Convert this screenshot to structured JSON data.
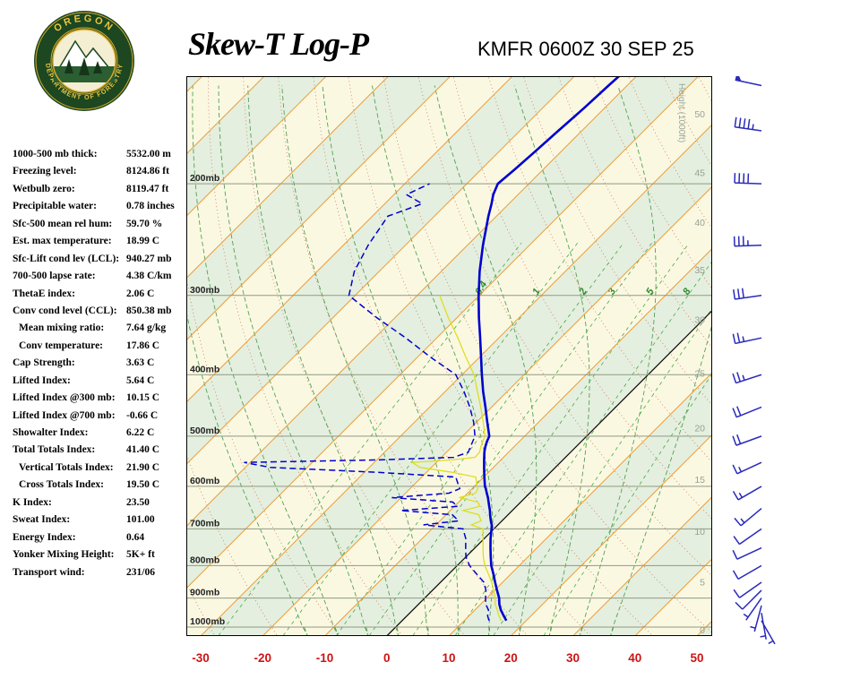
{
  "header": {
    "title": "Skew-T Log-P",
    "station_time": "KMFR 0600Z 30 SEP 25",
    "logo": {
      "org_top": "OREGON",
      "org_bottom": "DEPARTMENT OF FORESTRY"
    }
  },
  "stats": {
    "rows": [
      {
        "label": "1000-500 mb thick:",
        "value": "5532.00 m",
        "indent": false
      },
      {
        "label": "Freezing level:",
        "value": "8124.86 ft",
        "indent": false
      },
      {
        "label": "Wetbulb zero:",
        "value": "8119.47 ft",
        "indent": false
      },
      {
        "label": "Precipitable water:",
        "value": "0.78 inches",
        "indent": false
      },
      {
        "label": "Sfc-500 mean rel hum:",
        "value": "59.70 %",
        "indent": false
      },
      {
        "label": "Est. max temperature:",
        "value": "18.99 C",
        "indent": false
      },
      {
        "label": "Sfc-Lift cond lev (LCL):",
        "value": "940.27 mb",
        "indent": false
      },
      {
        "label": "700-500 lapse rate:",
        "value": "4.38 C/km",
        "indent": false
      },
      {
        "label": "ThetaE index:",
        "value": "2.06 C",
        "indent": false
      },
      {
        "label": "Conv cond level (CCL):",
        "value": "850.38 mb",
        "indent": false
      },
      {
        "label": "Mean mixing ratio:",
        "value": "7.64 g/kg",
        "indent": true
      },
      {
        "label": "Conv temperature:",
        "value": "17.86 C",
        "indent": true
      },
      {
        "label": "Cap Strength:",
        "value": "3.63 C",
        "indent": false
      },
      {
        "label": "Lifted Index:",
        "value": "5.64 C",
        "indent": false
      },
      {
        "label": "Lifted Index @300 mb:",
        "value": "10.15 C",
        "indent": false
      },
      {
        "label": "Lifted Index @700 mb:",
        "value": "-0.66 C",
        "indent": false
      },
      {
        "label": "Showalter Index:",
        "value": "6.22 C",
        "indent": false
      },
      {
        "label": "Total Totals Index:",
        "value": "41.40 C",
        "indent": false
      },
      {
        "label": "Vertical Totals Index:",
        "value": "21.90 C",
        "indent": true
      },
      {
        "label": "Cross Totals Index:",
        "value": "19.50 C",
        "indent": true
      },
      {
        "label": "K Index:",
        "value": "23.50",
        "indent": false
      },
      {
        "label": "Sweat Index:",
        "value": "101.00",
        "indent": false
      },
      {
        "label": "Energy Index:",
        "value": "0.64",
        "indent": false
      },
      {
        "label": "Yonker Mixing Height:",
        "value": "5K+ ft",
        "indent": false
      },
      {
        "label": "Transport wind:",
        "value": "231/06",
        "indent": false
      }
    ]
  },
  "chart_data": {
    "type": "skew-t-log-p",
    "pressure_axis": {
      "scale": "log",
      "top_mb": 135,
      "bottom_mb": 1033,
      "isobars": [
        200,
        300,
        400,
        500,
        600,
        700,
        800,
        900,
        1000
      ],
      "labels": [
        "200mb",
        "300mb",
        "400mb",
        "500mb",
        "600mb",
        "700mb",
        "800mb",
        "900mb",
        "1000mb"
      ]
    },
    "temp_axis": {
      "unit": "C",
      "skew_deg": 45,
      "isotherm_step": 10,
      "tick_values": [
        -30,
        -20,
        -10,
        0,
        10,
        20,
        30,
        40,
        50
      ],
      "tick_labels": [
        "-30",
        "-20",
        "-10",
        "0",
        "10",
        "20",
        "30",
        "40",
        "50"
      ]
    },
    "height_axis": {
      "title": "Height (1000ft)",
      "ticks": [
        {
          "label": "50",
          "p": 155
        },
        {
          "label": "45",
          "p": 192
        },
        {
          "label": "40",
          "p": 230
        },
        {
          "label": "35",
          "p": 273
        },
        {
          "label": "30",
          "p": 327
        },
        {
          "label": "25",
          "p": 398
        },
        {
          "label": "20",
          "p": 485
        },
        {
          "label": "15",
          "p": 585
        },
        {
          "label": "10",
          "p": 706
        },
        {
          "label": "5",
          "p": 848
        },
        {
          "label": "0",
          "p": 1010
        }
      ]
    },
    "mixing_ratio_lines": {
      "values_g_kg": [
        0.4,
        1,
        2,
        3,
        5,
        8,
        12,
        20
      ],
      "labeled": [
        "0.4",
        "1",
        "2",
        "3",
        "5",
        "8"
      ],
      "label_pressure": 300
    },
    "dry_adiabats": {
      "theta_c_min": -40,
      "theta_c_max": 240,
      "step": 10
    },
    "moist_adiabats": {
      "thetaw_c": [
        -15,
        -10,
        -5,
        0,
        5,
        10,
        15,
        20,
        25,
        30,
        35
      ]
    },
    "sounding": {
      "station": "KMFR",
      "time": "0600Z 30 SEP 25",
      "levels": [
        {
          "p": 977,
          "t": 16.8,
          "td": 14.0
        },
        {
          "p": 960,
          "t": 15.6,
          "td": 13.0
        },
        {
          "p": 940,
          "t": 14.2,
          "td": 12.2
        },
        {
          "p": 920,
          "t": 13.0,
          "td": 10.8
        },
        {
          "p": 900,
          "t": 12.0,
          "td": 9.8
        },
        {
          "p": 875,
          "t": 10.4,
          "td": 8.6
        },
        {
          "p": 850,
          "t": 8.8,
          "td": 7.0
        },
        {
          "p": 825,
          "t": 7.2,
          "td": 4.5
        },
        {
          "p": 800,
          "t": 5.5,
          "td": 2.0
        },
        {
          "p": 775,
          "t": 4.0,
          "td": 0.0
        },
        {
          "p": 750,
          "t": 2.5,
          "td": -1.5
        },
        {
          "p": 725,
          "t": 1.0,
          "td": -3.0
        },
        {
          "p": 700,
          "t": -0.4,
          "td": -5.0
        },
        {
          "p": 690,
          "t": -1.0,
          "td": -12.0
        },
        {
          "p": 680,
          "t": -1.8,
          "td": -7.0
        },
        {
          "p": 665,
          "t": -2.9,
          "td": -9.0
        },
        {
          "p": 655,
          "t": -3.6,
          "td": -18.0
        },
        {
          "p": 645,
          "t": -4.4,
          "td": -9.5
        },
        {
          "p": 635,
          "t": -5.2,
          "td": -11.0
        },
        {
          "p": 625,
          "t": -6.0,
          "td": -21.5
        },
        {
          "p": 615,
          "t": -6.9,
          "td": -13.0
        },
        {
          "p": 605,
          "t": -7.8,
          "td": -12.0
        },
        {
          "p": 600,
          "t": -8.3,
          "td": -12.5
        },
        {
          "p": 590,
          "t": -9.1,
          "td": -13.5
        },
        {
          "p": 580,
          "t": -9.9,
          "td": -14.5
        },
        {
          "p": 570,
          "t": -10.7,
          "td": -28.0
        },
        {
          "p": 560,
          "t": -11.5,
          "td": -46.0
        },
        {
          "p": 550,
          "t": -12.3,
          "td": -51.0
        },
        {
          "p": 545,
          "t": -12.7,
          "td": -30.0
        },
        {
          "p": 540,
          "t": -13.1,
          "td": -18.0
        },
        {
          "p": 530,
          "t": -13.9,
          "td": -16.5
        },
        {
          "p": 520,
          "t": -14.6,
          "td": -17.0
        },
        {
          "p": 510,
          "t": -15.2,
          "td": -17.5
        },
        {
          "p": 500,
          "t": -15.7,
          "td": -18.0
        },
        {
          "p": 475,
          "t": -18.3,
          "td": -20.5
        },
        {
          "p": 450,
          "t": -21.0,
          "td": -23.5
        },
        {
          "p": 425,
          "t": -23.9,
          "td": -27.0
        },
        {
          "p": 400,
          "t": -26.8,
          "td": -31.0
        },
        {
          "p": 375,
          "t": -29.8,
          "td": -38.0
        },
        {
          "p": 350,
          "t": -33.0,
          "td": -45.0
        },
        {
          "p": 325,
          "t": -36.5,
          "td": -53.0
        },
        {
          "p": 300,
          "t": -40.1,
          "td": -61.0
        },
        {
          "p": 275,
          "t": -43.8,
          "td": -64.0
        },
        {
          "p": 250,
          "t": -47.5,
          "td": -66.0
        },
        {
          "p": 225,
          "t": -51.3,
          "td": -67.5
        },
        {
          "p": 215,
          "t": -52.8,
          "td": -64.0
        },
        {
          "p": 208,
          "t": -54.0,
          "td": -68.0
        },
        {
          "p": 200,
          "t": -55.0,
          "td": -66.0
        },
        {
          "p": 190,
          "t": -54.6,
          "td": null
        },
        {
          "p": 178,
          "t": -54.2,
          "td": null
        },
        {
          "p": 165,
          "t": -53.8,
          "td": null
        },
        {
          "p": 152,
          "t": -53.3,
          "td": null
        },
        {
          "p": 140,
          "t": -53.0,
          "td": null
        },
        {
          "p": 135,
          "t": -52.8,
          "td": null
        }
      ]
    },
    "winds": [
      {
        "p": 977,
        "dir": 150,
        "spd": 5
      },
      {
        "p": 950,
        "dir": 170,
        "spd": 5
      },
      {
        "p": 925,
        "dir": 195,
        "spd": 5
      },
      {
        "p": 900,
        "dir": 215,
        "spd": 8
      },
      {
        "p": 875,
        "dir": 225,
        "spd": 10
      },
      {
        "p": 850,
        "dir": 235,
        "spd": 10
      },
      {
        "p": 800,
        "dir": 240,
        "spd": 10
      },
      {
        "p": 750,
        "dir": 245,
        "spd": 10
      },
      {
        "p": 700,
        "dir": 235,
        "spd": 10
      },
      {
        "p": 650,
        "dir": 230,
        "spd": 15
      },
      {
        "p": 600,
        "dir": 240,
        "spd": 15
      },
      {
        "p": 550,
        "dir": 245,
        "spd": 15
      },
      {
        "p": 500,
        "dir": 250,
        "spd": 20
      },
      {
        "p": 450,
        "dir": 248,
        "spd": 20
      },
      {
        "p": 400,
        "dir": 252,
        "spd": 25
      },
      {
        "p": 350,
        "dir": 258,
        "spd": 25
      },
      {
        "p": 300,
        "dir": 262,
        "spd": 30
      },
      {
        "p": 250,
        "dir": 268,
        "spd": 35
      },
      {
        "p": 200,
        "dir": 272,
        "spd": 40
      },
      {
        "p": 165,
        "dir": 278,
        "spd": 45
      },
      {
        "p": 140,
        "dir": 282,
        "spd": 50
      }
    ],
    "colors": {
      "band_cream": "#FBF8E2",
      "band_green": "#E4EFDF",
      "isobar": "#909A80",
      "isotherm": "#E8A040",
      "zero_isotherm": "#111111",
      "dry_adiabat": "#CC7755",
      "moist_adiabat": "#55A055",
      "mixing_ratio": "#44AA44",
      "temperature_line": "#0000CD",
      "dewpoint_line": "#0000CD",
      "wetbulb_line": "#Dede20",
      "wind_barb": "#2A2ABB",
      "temp_tick": "#CC1414",
      "height_label": "#94A294"
    }
  }
}
